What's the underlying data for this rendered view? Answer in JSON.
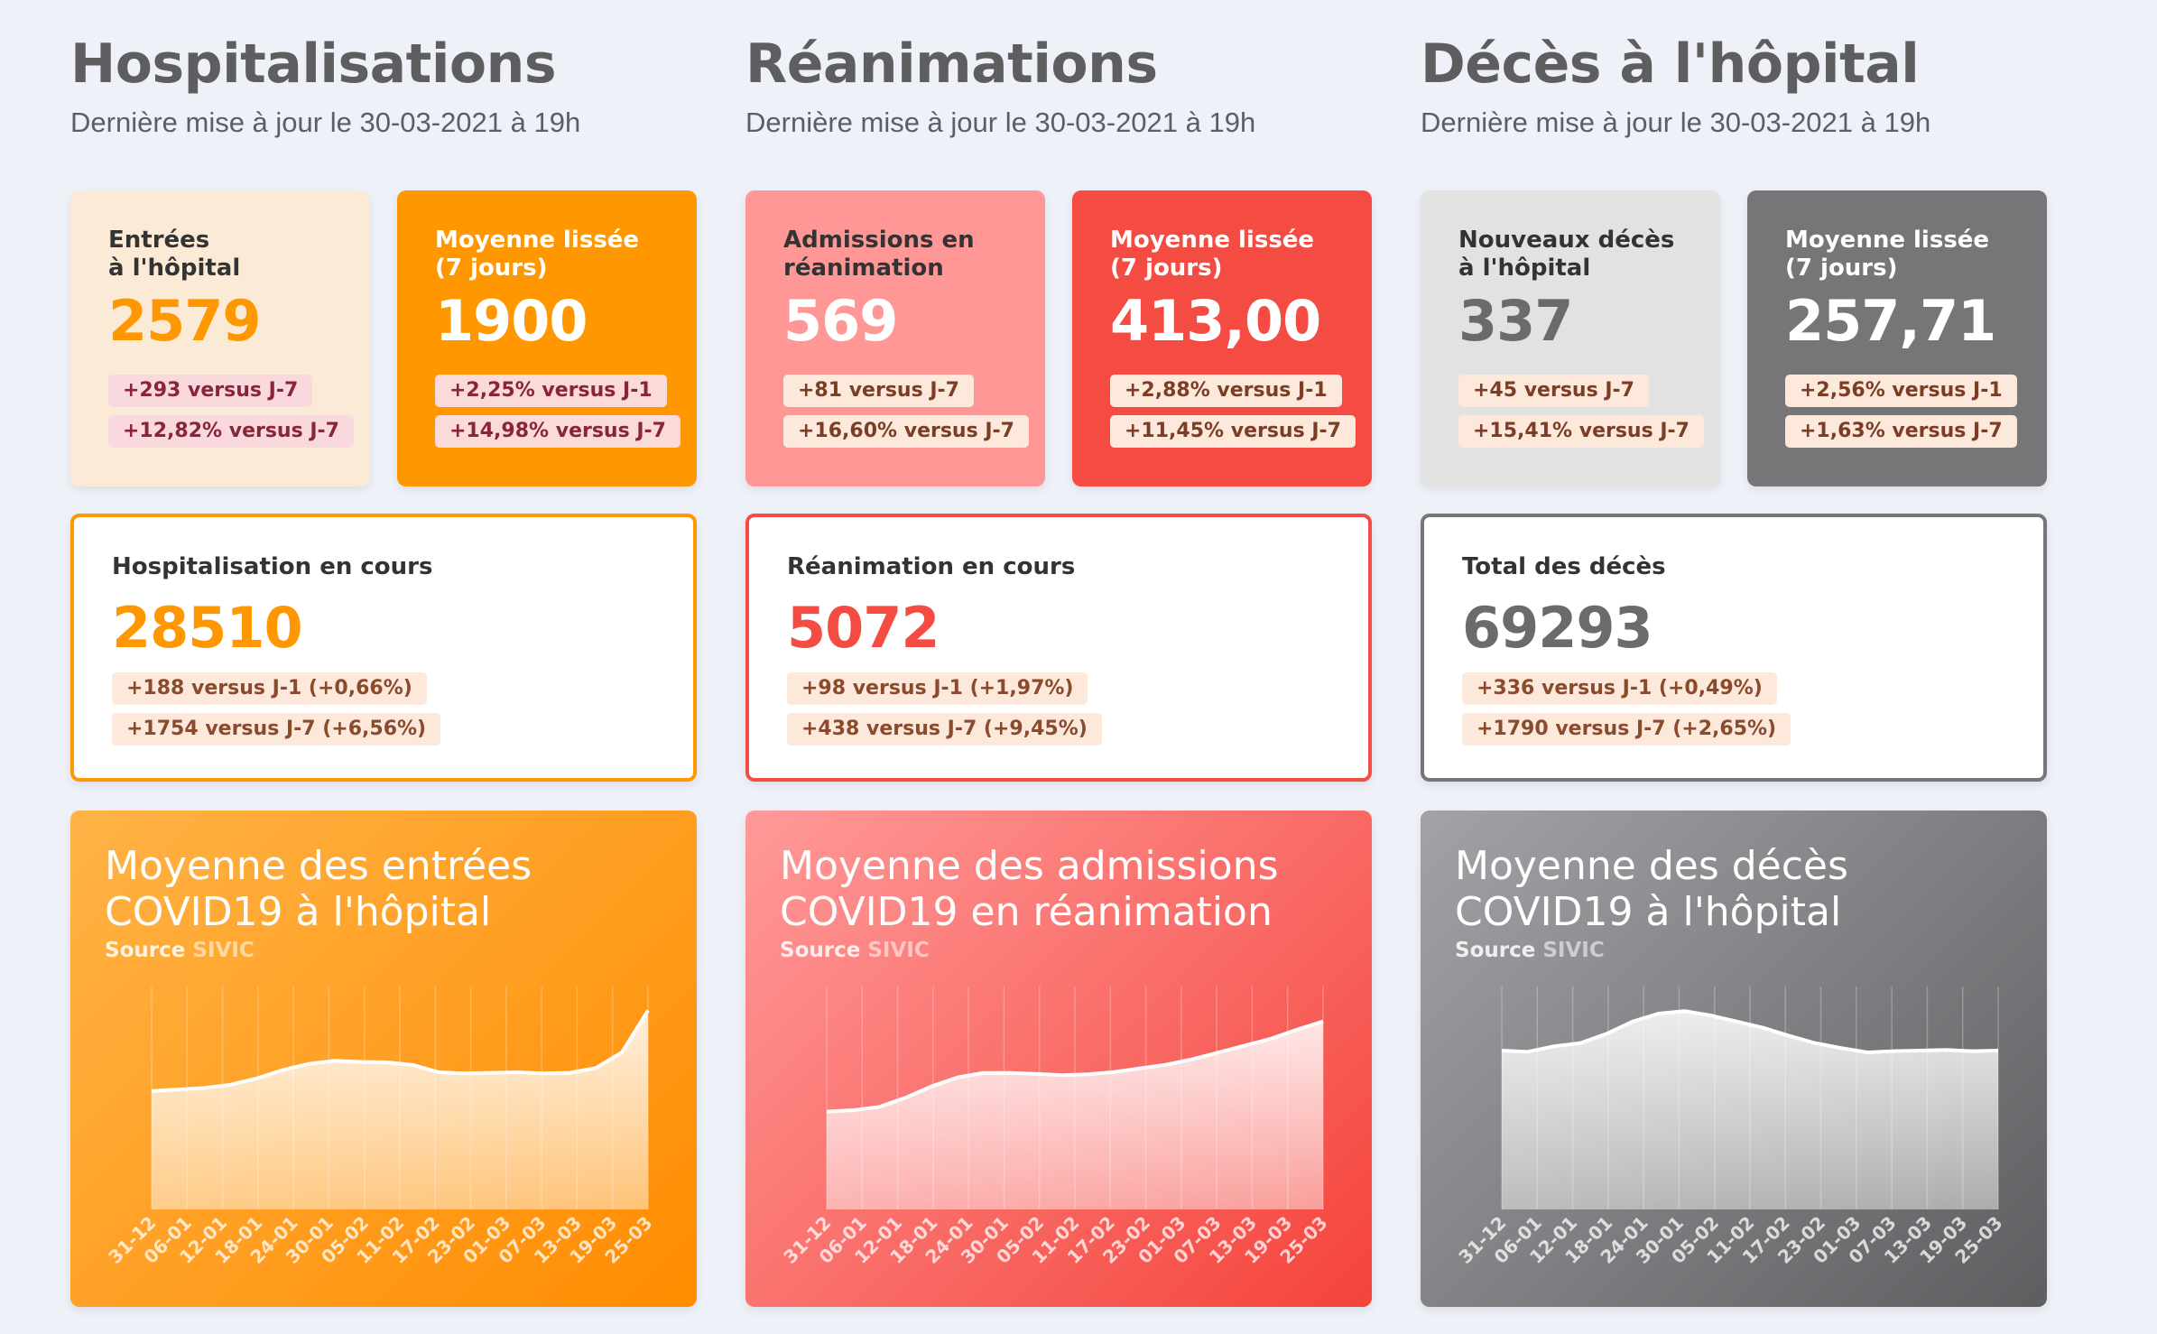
{
  "columns": [
    {
      "key": "hosp",
      "title": "Hospitalisations",
      "subtitle": "Dernière mise à jour le 30-03-2021 à 19h",
      "left_card": {
        "label": "Entrées\nà l'hôpital",
        "value": "2579",
        "pills": [
          "+293 versus J-7",
          "+12,82% versus J-7"
        ],
        "bg": "#fbebd6",
        "label_color": "#333",
        "value_color": "#ff9800",
        "pill_bg": "#f9d9de",
        "pill_color": "#8a2438"
      },
      "right_card": {
        "label": "Moyenne lissée (7 jours)",
        "value": "1900",
        "pills": [
          "+2,25% versus J-1",
          "+14,98% versus J-7"
        ],
        "bg": "#ff9800",
        "label_color": "#ffffff",
        "value_color": "#ffffff",
        "pill_bg": "#fbdada",
        "pill_color": "#8a2438"
      },
      "big_card": {
        "label": "Hospitalisation en cours",
        "value": "28510",
        "pills": [
          "+188 versus J-1 (+0,66%)",
          "+1754 versus J-7 (+6,56%)"
        ],
        "border": "#ff9800",
        "value_color": "#ff9800",
        "pill_bg": "#fde8dc",
        "pill_color": "#8a4a2c"
      },
      "chart_card": {
        "title": "Moyenne des entrées COVID19 à l'hôpital",
        "source_label": "Source",
        "source_name": "SIVIC",
        "gradient": [
          "#ffb347",
          "#ff8c00"
        ]
      }
    },
    {
      "key": "rea",
      "title": "Réanimations",
      "subtitle": "Dernière mise à jour le 30-03-2021 à 19h",
      "left_card": {
        "label": "Admissions en réanimation",
        "value": "569",
        "pills": [
          "+81 versus J-7",
          "+16,60% versus J-7"
        ],
        "bg": "#ff9796",
        "label_color": "#333",
        "value_color": "#ffffff",
        "pill_bg": "#fde8dc",
        "pill_color": "#7a3d25"
      },
      "right_card": {
        "label": "Moyenne lissée (7 jours)",
        "value": "413,00",
        "pills": [
          "+2,88% versus J-1",
          "+11,45% versus J-7"
        ],
        "bg": "#f44c43",
        "label_color": "#ffffff",
        "value_color": "#ffffff",
        "pill_bg": "#fde8dc",
        "pill_color": "#7a3d25"
      },
      "big_card": {
        "label": "Réanimation en cours",
        "value": "5072",
        "pills": [
          "+98 versus J-1 (+1,97%)",
          "+438 versus J-7 (+9,45%)"
        ],
        "border": "#f44c43",
        "value_color": "#f44c43",
        "pill_bg": "#fde8dc",
        "pill_color": "#8a4a2c"
      },
      "chart_card": {
        "title": "Moyenne des admissions COVID19 en réanimation",
        "source_label": "Source",
        "source_name": "SIVIC",
        "gradient": [
          "#ff9a9a",
          "#f4433a"
        ]
      }
    },
    {
      "key": "dc",
      "title": "Décès à l'hôpital",
      "subtitle": "Dernière mise à jour le 30-03-2021 à 19h",
      "left_card": {
        "label": "Nouveaux décès à l'hôpital",
        "value": "337",
        "pills": [
          "+45 versus J-7",
          "+15,41% versus J-7"
        ],
        "bg": "#e2e2e2",
        "label_color": "#333",
        "value_color": "#6b6b6b",
        "pill_bg": "#fde8dc",
        "pill_color": "#7a3d25"
      },
      "right_card": {
        "label": "Moyenne lissée (7 jours)",
        "value": "257,71",
        "pills": [
          "+2,56% versus J-1",
          "+1,63% versus J-7"
        ],
        "bg": "#767577",
        "label_color": "#ffffff",
        "value_color": "#ffffff",
        "pill_bg": "#fde8dc",
        "pill_color": "#7a3d25"
      },
      "big_card": {
        "label": "Total des décès",
        "value": "69293",
        "pills": [
          "+336 versus J-1 (+0,49%)",
          "+1790 versus J-7 (+2,65%)"
        ],
        "border": "#767577",
        "value_color": "#6b6b6b",
        "pill_bg": "#fde8dc",
        "pill_color": "#8a4a2c"
      },
      "chart_card": {
        "title": "Moyenne des décès COVID19 à l'hôpital",
        "source_label": "Source",
        "source_name": "SIVIC",
        "gradient": [
          "#a3a2a6",
          "#5e5d60"
        ]
      }
    }
  ],
  "chart_data": [
    {
      "type": "area",
      "x_ticks": [
        "31-12",
        "06-01",
        "12-01",
        "18-01",
        "24-01",
        "30-01",
        "05-02",
        "11-02",
        "17-02",
        "23-02",
        "01-03",
        "07-03",
        "13-03",
        "19-03",
        "25-03"
      ],
      "values": [
        1130,
        1145,
        1160,
        1190,
        1250,
        1330,
        1390,
        1420,
        1410,
        1405,
        1380,
        1310,
        1300,
        1305,
        1310,
        1300,
        1305,
        1350,
        1500,
        1900
      ],
      "ylim": [
        0,
        2000
      ]
    },
    {
      "type": "area",
      "x_ticks": [
        "31-12",
        "06-01",
        "12-01",
        "18-01",
        "24-01",
        "30-01",
        "05-02",
        "11-02",
        "17-02",
        "23-02",
        "01-03",
        "07-03",
        "13-03",
        "19-03",
        "25-03"
      ],
      "values": [
        215,
        218,
        225,
        245,
        270,
        290,
        300,
        300,
        298,
        295,
        297,
        302,
        310,
        318,
        330,
        345,
        360,
        375,
        395,
        413
      ],
      "ylim": [
        0,
        460
      ]
    },
    {
      "type": "area",
      "x_ticks": [
        "31-12",
        "06-01",
        "12-01",
        "18-01",
        "24-01",
        "30-01",
        "05-02",
        "11-02",
        "17-02",
        "23-02",
        "01-03",
        "07-03",
        "13-03",
        "19-03",
        "25-03"
      ],
      "values": [
        258,
        256,
        265,
        270,
        285,
        305,
        318,
        322,
        315,
        305,
        295,
        282,
        270,
        262,
        255,
        257,
        258,
        259,
        257,
        258
      ],
      "ylim": [
        0,
        340
      ]
    }
  ]
}
